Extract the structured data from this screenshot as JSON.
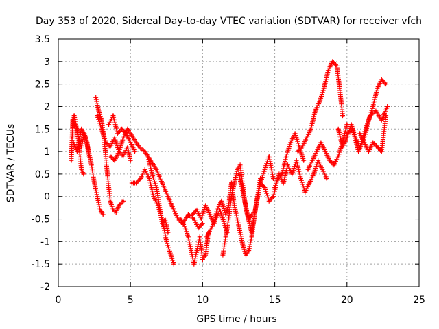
{
  "chart_data": {
    "type": "scatter",
    "title": "Day 353 of 2020, Sidereal Day-to-day VTEC variation (SDTVAR) for receiver vfch",
    "xlabel": "GPS time / hours",
    "ylabel": "SDTVAR / TECUs",
    "xlim": [
      0,
      25
    ],
    "ylim": [
      -2,
      3.5
    ],
    "xticks": [
      0,
      5,
      10,
      15,
      20,
      25
    ],
    "xtick_labels": [
      "0",
      "5",
      "10",
      "15",
      "20",
      "25"
    ],
    "yticks": [
      -2,
      -1.5,
      -1,
      -0.5,
      0,
      0.5,
      1,
      1.5,
      2,
      2.5,
      3,
      3.5
    ],
    "ytick_labels": [
      "-2",
      "-1.5",
      "-1",
      "-0.5",
      "0",
      "0.5",
      "1",
      "1.5",
      "2",
      "2.5",
      "3",
      "3.5"
    ],
    "grid": true,
    "marker": "+",
    "color": "#ff0000",
    "series": [
      {
        "name": "seg1",
        "x": [
          0.9,
          1.0,
          1.2,
          1.4,
          1.6,
          1.8,
          2.0,
          2.1
        ],
        "y": [
          0.8,
          1.7,
          1.6,
          1.3,
          1.1,
          1.4,
          1.2,
          0.9
        ]
      },
      {
        "name": "seg2",
        "x": [
          0.95,
          1.1,
          1.3,
          1.5,
          1.6,
          1.75
        ],
        "y": [
          1.3,
          1.8,
          1.5,
          0.9,
          0.6,
          0.5
        ]
      },
      {
        "name": "seg3",
        "x": [
          1.05,
          1.3,
          1.6,
          1.9,
          2.1,
          2.3,
          2.5,
          2.7,
          2.9,
          3.1
        ],
        "y": [
          1.2,
          1.0,
          1.5,
          1.3,
          1.0,
          0.7,
          0.3,
          0.0,
          -0.3,
          -0.4
        ]
      },
      {
        "name": "seg4",
        "x": [
          2.6,
          2.8,
          3.0,
          3.2,
          3.4,
          3.6,
          3.8,
          4.0,
          4.2,
          4.5
        ],
        "y": [
          2.2,
          1.9,
          1.7,
          1.2,
          0.5,
          -0.1,
          -0.3,
          -0.35,
          -0.2,
          -0.1
        ]
      },
      {
        "name": "seg5",
        "x": [
          2.7,
          3.0,
          3.3,
          3.6,
          3.9,
          4.2,
          4.5,
          4.8,
          5.0
        ],
        "y": [
          1.8,
          1.5,
          1.2,
          1.1,
          1.3,
          1.0,
          0.9,
          1.1,
          0.8
        ]
      },
      {
        "name": "seg6",
        "x": [
          3.5,
          3.8,
          4.1,
          4.4,
          4.7,
          5.0,
          5.3
        ],
        "y": [
          1.6,
          1.8,
          1.4,
          1.5,
          1.4,
          1.2,
          1.0
        ]
      },
      {
        "name": "seg7",
        "x": [
          3.6,
          3.9,
          4.2,
          4.5,
          4.8
        ],
        "y": [
          0.9,
          0.8,
          1.0,
          1.3,
          1.5
        ]
      },
      {
        "name": "seg8",
        "x": [
          5.1,
          5.4,
          5.7,
          6.0,
          6.3,
          6.6,
          6.9,
          7.2,
          7.5,
          7.8,
          8.0
        ],
        "y": [
          0.3,
          0.3,
          0.4,
          0.6,
          0.4,
          0.0,
          -0.2,
          -0.5,
          -1.0,
          -1.3,
          -1.5
        ]
      },
      {
        "name": "seg9",
        "x": [
          4.8,
          5.2,
          5.6,
          6.0,
          6.4,
          6.8,
          7.2,
          7.6,
          8.0,
          8.3,
          8.6,
          9.0,
          9.4,
          9.7,
          10.0
        ],
        "y": [
          1.5,
          1.3,
          1.1,
          1.0,
          0.8,
          0.6,
          0.3,
          0.0,
          -0.3,
          -0.5,
          -0.6,
          -0.4,
          -0.5,
          -0.7,
          -0.6
        ]
      },
      {
        "name": "seg10",
        "x": [
          6.2,
          6.5,
          6.8,
          7.0,
          7.2,
          7.4,
          7.6
        ],
        "y": [
          0.9,
          0.5,
          0.2,
          -0.2,
          -0.6,
          -0.5,
          -0.8
        ]
      },
      {
        "name": "seg11",
        "x": [
          8.5,
          8.8,
          9.0,
          9.2,
          9.4,
          9.6,
          9.8,
          10.0,
          10.2,
          10.4
        ],
        "y": [
          -0.5,
          -0.7,
          -0.9,
          -1.2,
          -1.5,
          -1.2,
          -0.9,
          -1.4,
          -1.3,
          -0.8
        ]
      },
      {
        "name": "seg12",
        "x": [
          9.3,
          9.6,
          9.9,
          10.2,
          10.5,
          10.8,
          11.0,
          11.3,
          11.6,
          11.8,
          12.0
        ],
        "y": [
          -0.4,
          -0.3,
          -0.5,
          -0.2,
          -0.4,
          -0.6,
          -0.3,
          -0.1,
          -0.4,
          -0.2,
          0.3
        ]
      },
      {
        "name": "seg13",
        "x": [
          10.3,
          10.6,
          10.9,
          11.2,
          11.5,
          11.7
        ],
        "y": [
          -0.9,
          -0.7,
          -0.5,
          -0.3,
          -0.6,
          -0.8
        ]
      },
      {
        "name": "seg14",
        "x": [
          11.4,
          11.6,
          11.8,
          12.0,
          12.2,
          12.4,
          12.6,
          12.8,
          13.0,
          13.2,
          13.4
        ],
        "y": [
          -1.3,
          -0.9,
          -0.5,
          0.0,
          0.3,
          0.6,
          0.7,
          0.2,
          -0.3,
          -0.5,
          -0.4
        ]
      },
      {
        "name": "seg15",
        "x": [
          12.0,
          12.2,
          12.4,
          12.6,
          12.8,
          13.0,
          13.2,
          13.4,
          13.6,
          13.8,
          14.0
        ],
        "y": [
          0.3,
          -0.2,
          -0.5,
          -0.8,
          -1.1,
          -1.3,
          -1.2,
          -0.9,
          -0.4,
          0.0,
          0.4
        ]
      },
      {
        "name": "seg16",
        "x": [
          12.5,
          12.8,
          13.1,
          13.4,
          13.7,
          14.0,
          14.3,
          14.6,
          14.9
        ],
        "y": [
          0.5,
          0.1,
          -0.4,
          -0.8,
          -0.2,
          0.3,
          0.6,
          0.9,
          0.4
        ]
      },
      {
        "name": "seg17",
        "x": [
          14.0,
          14.3,
          14.6,
          14.9,
          15.2,
          15.5,
          15.8,
          16.1,
          16.4,
          16.7,
          17.0
        ],
        "y": [
          0.3,
          0.2,
          -0.1,
          0.0,
          0.4,
          0.5,
          0.9,
          1.2,
          1.4,
          1.1,
          0.8
        ]
      },
      {
        "name": "seg18",
        "x": [
          15.0,
          15.3,
          15.6,
          15.9,
          16.2,
          16.5,
          16.8,
          17.1,
          17.4,
          17.7,
          18.0,
          18.3,
          18.6
        ],
        "y": [
          0.2,
          0.5,
          0.3,
          0.7,
          0.5,
          0.8,
          0.4,
          0.1,
          0.3,
          0.5,
          0.8,
          0.6,
          0.4
        ]
      },
      {
        "name": "seg19",
        "x": [
          16.6,
          16.9,
          17.2,
          17.5,
          17.8,
          18.1,
          18.4,
          18.7,
          19.0,
          19.3,
          19.5,
          19.7
        ],
        "y": [
          1.0,
          1.1,
          1.3,
          1.5,
          1.9,
          2.1,
          2.4,
          2.8,
          3.0,
          2.9,
          2.4,
          1.8
        ]
      },
      {
        "name": "seg20",
        "x": [
          17.3,
          17.6,
          17.9,
          18.2,
          18.5,
          18.8,
          19.1,
          19.4,
          19.7,
          20.0
        ],
        "y": [
          0.6,
          0.8,
          1.0,
          1.2,
          1.0,
          0.8,
          0.7,
          0.9,
          1.2,
          1.6
        ]
      },
      {
        "name": "seg21",
        "x": [
          19.4,
          19.7,
          20.0,
          20.3,
          20.6,
          20.9,
          21.2,
          21.5,
          21.8,
          22.1,
          22.4,
          22.7
        ],
        "y": [
          1.5,
          1.1,
          1.3,
          1.6,
          1.3,
          1.1,
          1.4,
          1.7,
          2.0,
          2.4,
          2.6,
          2.5
        ]
      },
      {
        "name": "seg22",
        "x": [
          20.0,
          20.4,
          20.8,
          21.2,
          21.6,
          22.0,
          22.4,
          22.8
        ],
        "y": [
          1.4,
          1.5,
          1.0,
          1.3,
          1.8,
          1.9,
          1.7,
          2.0
        ]
      },
      {
        "name": "seg23",
        "x": [
          20.9,
          21.2,
          21.5,
          21.8,
          22.1,
          22.4,
          22.7
        ],
        "y": [
          1.4,
          1.2,
          1.0,
          1.2,
          1.1,
          1.0,
          1.8
        ]
      }
    ]
  }
}
